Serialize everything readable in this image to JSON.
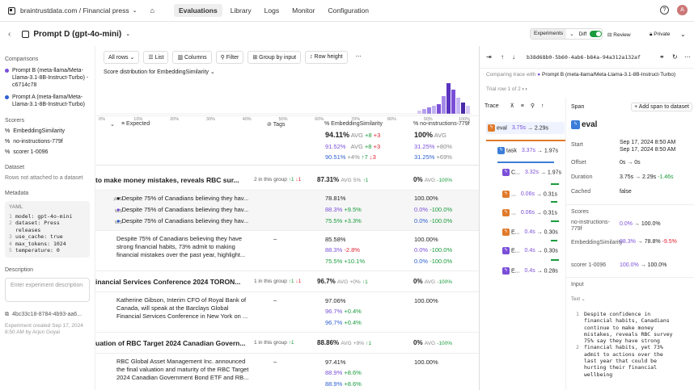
{
  "topbar": {
    "breadcrumb": "braintrustdata.com / Financial press",
    "nav": [
      "Evaluations",
      "Library",
      "Logs",
      "Monitor",
      "Configuration"
    ],
    "active_nav": "Evaluations"
  },
  "subbar": {
    "title": "Prompt D (gpt-4o-mini)"
  },
  "sidebar": {
    "comparisons_h": "Comparisons",
    "comparisons": [
      {
        "label": "Prompt B (meta-llama/Meta-Llama-3.1-8B-Instruct-Turbo) - c6714c78",
        "color": "#7a4fd8"
      },
      {
        "label": "Prompt A (meta-llama/Meta-Llama-3.1-8B-Instruct-Turbo)",
        "color": "#2d5fd0"
      }
    ],
    "scorers_h": "Scorers",
    "scorers": [
      "EmbeddingSimilarity",
      "no-instructions-779f",
      "scorer 1-0096"
    ],
    "dataset_h": "Dataset",
    "dataset_txt": "Rows not attached to a dataset",
    "metadata_h": "Metadata",
    "yaml_label": "YAML",
    "yaml": [
      "model: gpt-4o-mini",
      "dataset: Press",
      "releases",
      "use_cache: true",
      "max_tokens: 1024",
      "temperature: 0"
    ],
    "yaml_nums": [
      "1",
      "2",
      "",
      "3",
      "4",
      "5"
    ],
    "description_h": "Description",
    "description_placeholder": "Enter experiment description",
    "id": "4bc33c18-8784-4b93-aa6...",
    "created": "Experiment created Sep 17, 2024 8:50 AM by Arjun Goyal"
  },
  "main": {
    "toolbar": [
      "All rows",
      "List",
      "Columns",
      "Filter",
      "Group by input",
      "Row height"
    ],
    "dist_title": "Score distribution for EmbeddingSimilarity",
    "hist_ticks": [
      "0%",
      "10%",
      "20%",
      "30%",
      "40%",
      "50%",
      "60%",
      "70%",
      "80%",
      "90%",
      "100%"
    ],
    "headers": {
      "expected": "Expected",
      "tags": "Tags",
      "emb": "EmbeddingSimilarity",
      "noinst": "no-instructions-779f"
    },
    "agg": {
      "emb_main": "94.11%",
      "emb_main_suffix": "AVG",
      "emb_d1": "+8",
      "emb_d2": "+3",
      "emb_b": "91.52%",
      "emb_b_d1": "+8",
      "emb_b_d2": "+3",
      "emb_a": "90.51%",
      "emb_a_d1": "+4%",
      "emb_a_d2": "↑7",
      "emb_a_d3": "↓3",
      "ni_main": "100%",
      "ni_main_suffix": "AVG",
      "ni_b": "31.25%",
      "ni_b_d": "+80%",
      "ni_a": "31.25%",
      "ni_a_d": "+69%"
    },
    "groups": [
      {
        "title": "to make money mistakes, reveals RBC sur...",
        "info": "2 in this group",
        "up": "↑1",
        "down": "↓1",
        "score": "87.31%",
        "avg": "AVG",
        "pct": "5%",
        "pct2": "↑1",
        "ni": "0%",
        "ni_avg": "AVG",
        "ni_d": "-100%"
      },
      {
        "title": "inancial Services Conference 2024 TORON...",
        "info": "1 in this group",
        "up": "↑1",
        "down": "↓1",
        "score": "96.7%",
        "avg": "AVG",
        "pct": "+0%",
        "pct2": "↑1",
        "ni": "0%",
        "ni_avg": "AVG",
        "ni_d": "-100%"
      },
      {
        "title": "uation of RBC Target 2024 Canadian Govern...",
        "info": "1 in this group",
        "up": "↑1",
        "down": "",
        "score": "88.86%",
        "avg": "AVG",
        "pct": "+9%",
        "pct2": "↑1",
        "ni": "0%",
        "ni_avg": "AVG",
        "ni_d": "-100%"
      }
    ],
    "rows": {
      "r1": [
        {
          "text": "Despite 75% of Canadians believing they hav...",
          "score": "78.81%",
          "ni": "100.00%"
        },
        {
          "text": "Despite 75% of Canadians believing they hav...",
          "score": "88.3%",
          "score_d": "+9.5%",
          "ni": "0.0%",
          "ni_d": "-100.0%"
        },
        {
          "text": "Despite 75% of Canadians believing they hav...",
          "score": "75.5%",
          "score_d": "+3.3%",
          "ni": "0.0%",
          "ni_d": "-100.0%"
        }
      ],
      "r2": {
        "text1": "Despite 75% of Canadians believing they have",
        "text2": "strong financial habits, 73% admit to making",
        "text3": "financial mistakes over the past year, highlight...",
        "tag": "–",
        "s1": "85.58%",
        "s2": "88.3%",
        "s2d": "-2.8%",
        "s3": "75.5%",
        "s3d": "+10.1%",
        "n1": "100.00%",
        "n2": "0.0%",
        "n2d": "-100.0%",
        "n3": "0.0%",
        "n3d": "-100.0%"
      },
      "r3": {
        "text1": "Katherine Gibson, Interim CFO of Royal Bank of",
        "text2": "Canada, will speak at the Barclays Global",
        "text3": "Financial Services Conference in New York on ...",
        "tag": "–",
        "s1": "97.06%",
        "s2": "96.7%",
        "s2d": "+0.4%",
        "s3": "96.7%",
        "s3d": "+0.4%",
        "n1": "100.00%"
      },
      "r4": {
        "text1": "RBC Global Asset Management Inc. announced",
        "text2": "the final valuation and maturity of the RBC Target",
        "text3": "2024 Canadian Government Bond ETF and RB...",
        "tag": "–",
        "s1": "97.41%",
        "s2": "88.9%",
        "s2d": "+8.6%",
        "s3": "88.9%",
        "s3d": "+8.6%",
        "n1": "100.00%"
      }
    }
  },
  "panel": {
    "trace_id": "b38d68b0-5b60-4ab6-b84a-94a312a132af",
    "experiments": "Experiments",
    "diff": "Diff",
    "review": "Review",
    "private": "Private",
    "comparing": "Comparing trace with",
    "comparing_target": "Prompt B (meta-llama/Meta-Llama-3.1-8B-Instruct-Turbo)",
    "row_of": "Trial row 1 of 2",
    "trace_h": "Trace",
    "span_h": "Span",
    "add_span": "Add span to dataset",
    "tree": [
      {
        "name": "eval",
        "t1": "3.75s",
        "t2": "2.29s",
        "color": "#e07a2a"
      },
      {
        "name": "task",
        "t1": "3.37s",
        "t2": "1.97s",
        "color": "#3b7dd8"
      },
      {
        "name": "C...",
        "t1": "3.32s",
        "t2": "1.97s",
        "color": "#7a4fd8"
      },
      {
        "name": "...",
        "t1": "0.06s",
        "t2": "0.31s",
        "color": "#e07a2a"
      },
      {
        "name": "...",
        "t1": "0.06s",
        "t2": "0.31s",
        "color": "#e07a2a"
      },
      {
        "name": "E...",
        "t1": "0.4s",
        "t2": "0.30s",
        "color": "#e07a2a"
      },
      {
        "name": "E...",
        "t1": "0.4s",
        "t2": "0.30s",
        "color": "#7a4fd8"
      },
      {
        "name": "E...",
        "t1": "0.4s",
        "t2": "0.28s",
        "color": "#7a4fd8"
      }
    ],
    "span_title": "eval",
    "start_l": "Start",
    "start_v1": "Sep 17, 2024 8:50 AM",
    "start_v2": "Sep 17, 2024 8:50 AM",
    "offset_l": "Offset",
    "offset_v": "0s → 0s",
    "duration_l": "Duration",
    "duration_v": "3.75s → 2.29s",
    "duration_d": "-1.46s",
    "cached_l": "Cached",
    "cached_v": "false",
    "scores_h": "Scores",
    "sc1_l": "no-instructions-779f",
    "sc1_v": "0.0%",
    "sc1_v2": "→ 100.0%",
    "sc2_l": "EmbeddingSimilarity",
    "sc2_v": "88.3%",
    "sc2_v2": "→ 78.8%",
    "sc2_d": "-9.5%",
    "sc3_l": "scorer 1-0096",
    "sc3_v": "100.0%",
    "sc3_v2": "→ 100.0%",
    "input_h": "Input",
    "input_sub": "Text",
    "input_lines": [
      [
        "1",
        "Despite confidence in"
      ],
      [
        "",
        "financial habits, Canadians"
      ],
      [
        "",
        "continue to make money"
      ],
      [
        "",
        "mistakes, reveals RBC survey"
      ],
      [
        "",
        "75% say they have strong"
      ],
      [
        "2",
        "financial habits, yet 73%"
      ],
      [
        "",
        "admit to actions over the"
      ],
      [
        "",
        "last year that could be"
      ],
      [
        "",
        "hurting their financial"
      ],
      [
        "",
        "wellbeing"
      ]
    ]
  }
}
